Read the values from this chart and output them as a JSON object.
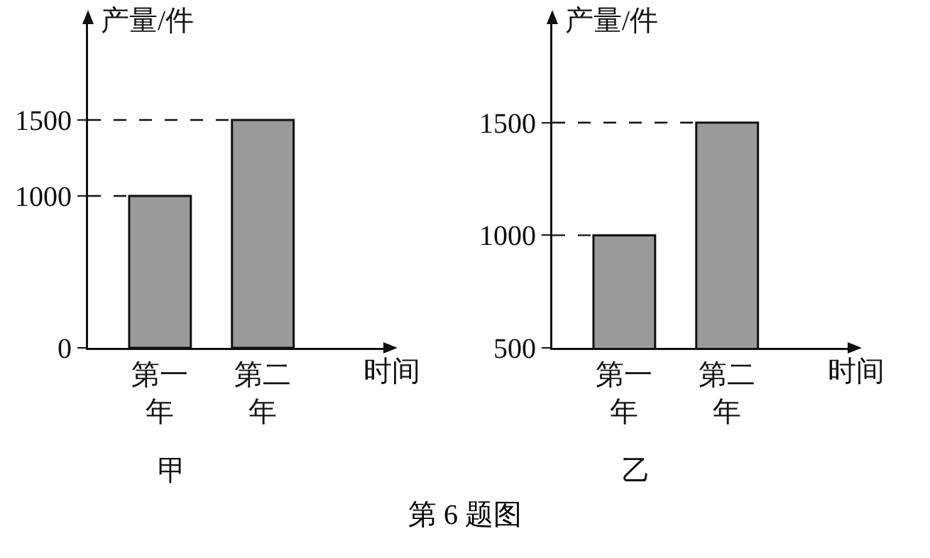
{
  "chart_data": [
    {
      "type": "bar",
      "title": "甲",
      "xlabel": "时间",
      "ylabel": "产量/件",
      "categories": [
        "第一年",
        "第二年"
      ],
      "values": [
        1000,
        1500
      ],
      "color": "#9a9a9a",
      "ylim": [
        0,
        2150
      ],
      "yticks": [
        0,
        1000,
        1500
      ],
      "ref_lines": [
        {
          "axis": "y",
          "value": 1000,
          "line_style": "dashed"
        },
        {
          "axis": "y",
          "value": 1500,
          "line_style": "dashed"
        }
      ],
      "annotations": [
        "第 6 题图"
      ]
    },
    {
      "type": "bar",
      "title": "乙",
      "xlabel": "时间",
      "ylabel": "产量/件",
      "categories": [
        "第一年",
        "第二年"
      ],
      "values": [
        1000,
        1500
      ],
      "color": "#9a9a9a",
      "ylim": [
        500,
        1950
      ],
      "yticks": [
        500,
        1000,
        1500
      ],
      "ref_lines": [
        {
          "axis": "y",
          "value": 1000,
          "line_style": "dashed"
        },
        {
          "axis": "y",
          "value": 1500,
          "line_style": "dashed"
        }
      ]
    }
  ]
}
